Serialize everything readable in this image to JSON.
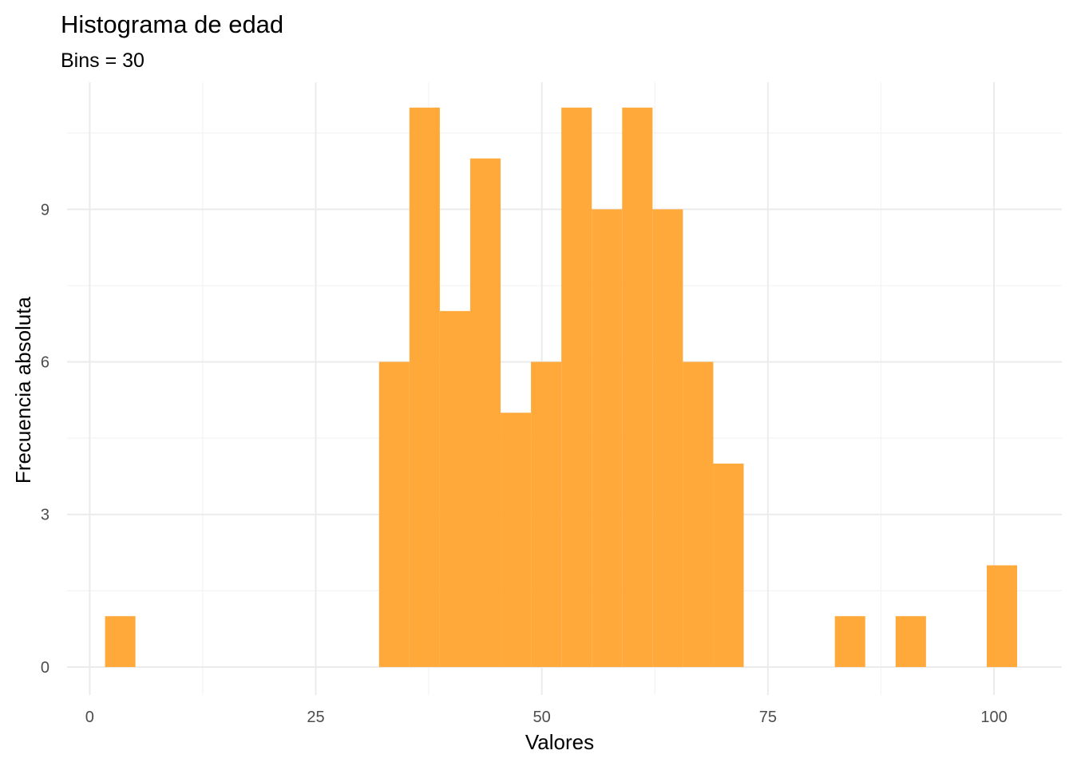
{
  "chart_data": {
    "type": "bar",
    "title": "Histograma de edad",
    "subtitle": "Bins = 30",
    "xlabel": "Valores",
    "ylabel": "Frecuencia absoluta",
    "bar_color": "#FFA533",
    "xlim": [
      -2.5,
      107.5
    ],
    "ylim": [
      -0.55,
      11.5
    ],
    "x_ticks": [
      0,
      25,
      50,
      75,
      100
    ],
    "y_ticks": [
      0,
      3,
      6,
      9
    ],
    "x_minor": [
      12.5,
      37.5,
      62.5,
      87.5
    ],
    "y_minor": [
      1.5,
      4.5,
      7.5,
      10.5
    ],
    "grid": true,
    "legend": "none",
    "bin_width": 3.36,
    "bins": [
      {
        "x0": 1.7,
        "x1": 5.06,
        "count": 1
      },
      {
        "x0": 32.0,
        "x1": 35.36,
        "count": 6
      },
      {
        "x0": 35.36,
        "x1": 38.72,
        "count": 11
      },
      {
        "x0": 38.72,
        "x1": 42.08,
        "count": 7
      },
      {
        "x0": 42.08,
        "x1": 45.44,
        "count": 10
      },
      {
        "x0": 45.44,
        "x1": 48.8,
        "count": 5
      },
      {
        "x0": 48.8,
        "x1": 52.16,
        "count": 6
      },
      {
        "x0": 52.16,
        "x1": 55.52,
        "count": 11
      },
      {
        "x0": 55.52,
        "x1": 58.88,
        "count": 9
      },
      {
        "x0": 58.88,
        "x1": 62.24,
        "count": 11
      },
      {
        "x0": 62.24,
        "x1": 65.6,
        "count": 9
      },
      {
        "x0": 65.6,
        "x1": 68.96,
        "count": 6
      },
      {
        "x0": 68.96,
        "x1": 72.32,
        "count": 4
      },
      {
        "x0": 82.4,
        "x1": 85.76,
        "count": 1
      },
      {
        "x0": 89.12,
        "x1": 92.48,
        "count": 1
      },
      {
        "x0": 99.2,
        "x1": 102.56,
        "count": 2
      }
    ]
  }
}
